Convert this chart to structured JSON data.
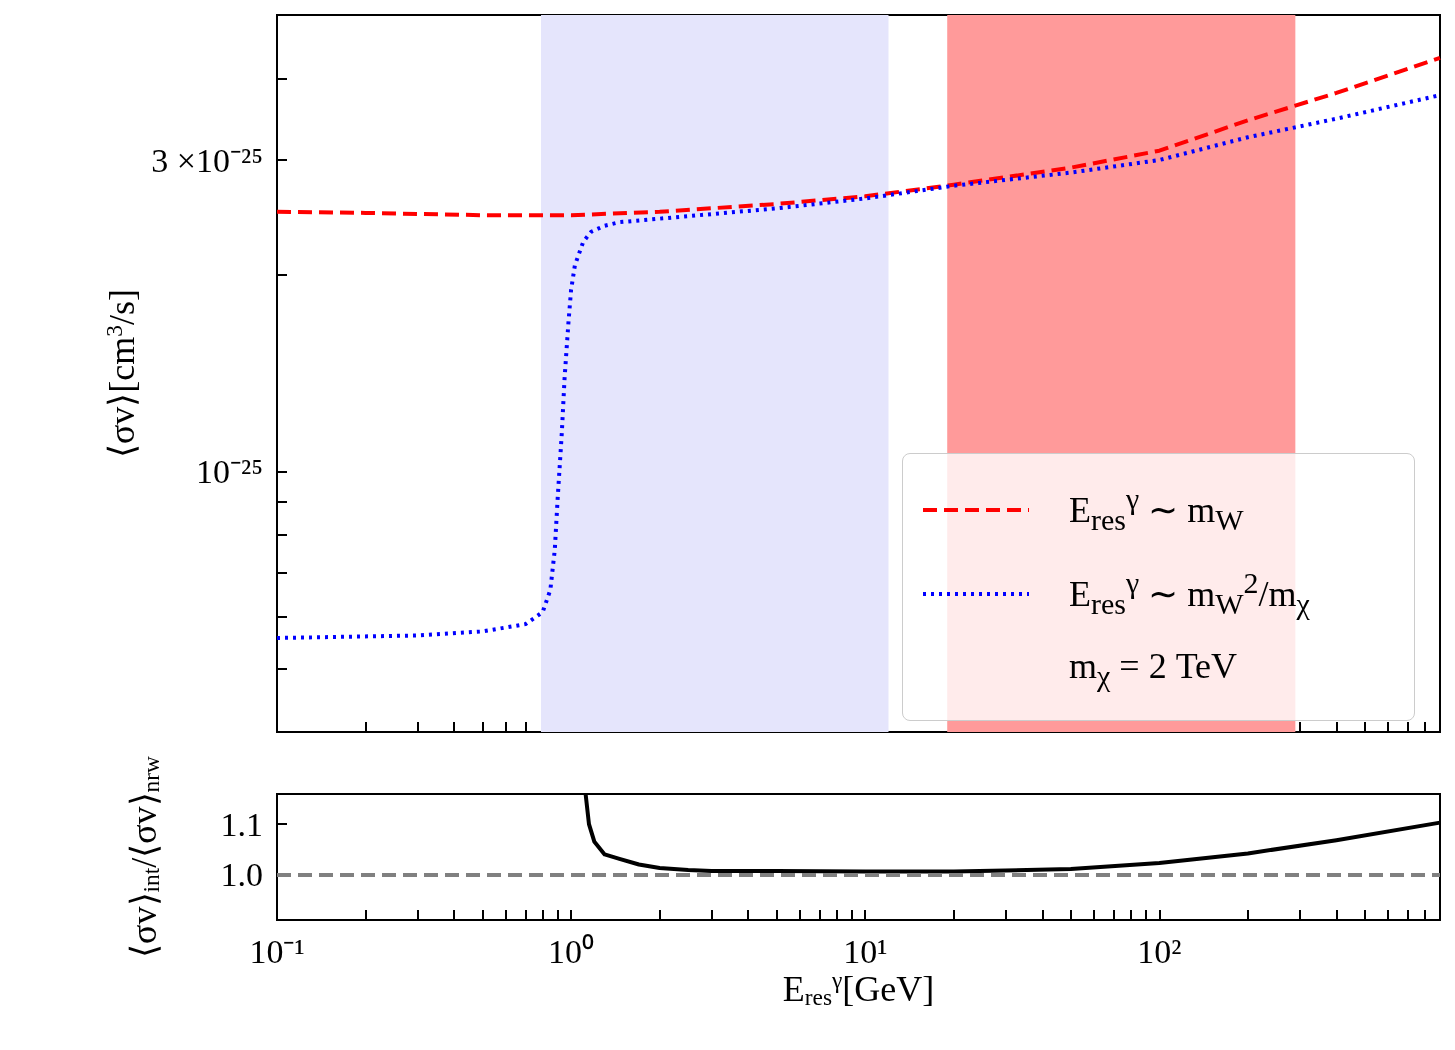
{
  "chart_data": [
    {
      "type": "line",
      "ylabel": "⟨σv⟩[cm$^{3}$/s]",
      "log": "xy",
      "legend": "bottom right",
      "tick_labels": "y",
      "xlim": [
        0.1,
        900
      ],
      "xticks": [
        {
          "value": 0.1,
          "label": null
        },
        {
          "value": 0.2,
          "label": null
        },
        {
          "value": 0.3,
          "label": null
        },
        {
          "value": 0.4,
          "label": null
        },
        {
          "value": 0.5,
          "label": null
        },
        {
          "value": 0.6,
          "label": null
        },
        {
          "value": 0.7,
          "label": null
        },
        {
          "value": 0.8,
          "label": null
        },
        {
          "value": 0.9,
          "label": null
        },
        {
          "value": 1,
          "label": null
        },
        {
          "value": 2,
          "label": null
        },
        {
          "value": 3,
          "label": null
        },
        {
          "value": 4,
          "label": null
        },
        {
          "value": 5,
          "label": null
        },
        {
          "value": 6,
          "label": null
        },
        {
          "value": 7,
          "label": null
        },
        {
          "value": 8,
          "label": null
        },
        {
          "value": 9,
          "label": null
        },
        {
          "value": 10,
          "label": null
        },
        {
          "value": 20,
          "label": null
        },
        {
          "value": 30,
          "label": null
        },
        {
          "value": 40,
          "label": null
        },
        {
          "value": 50,
          "label": null
        },
        {
          "value": 60,
          "label": null
        },
        {
          "value": 70,
          "label": null
        },
        {
          "value": 80,
          "label": null
        },
        {
          "value": 90,
          "label": null
        },
        {
          "value": 100,
          "label": null
        },
        {
          "value": 200,
          "label": null
        },
        {
          "value": 300,
          "label": null
        },
        {
          "value": 400,
          "label": null
        },
        {
          "value": 500,
          "label": null
        },
        {
          "value": 600,
          "label": null
        },
        {
          "value": 700,
          "label": null
        },
        {
          "value": 800,
          "label": null
        },
        {
          "value": 900,
          "label": null
        }
      ],
      "ylim": [
        4e-26,
        5e-25
      ],
      "yticks": [
        {
          "value": 5e-26,
          "label": null
        },
        {
          "value": 6e-26,
          "label": null
        },
        {
          "value": 7e-26,
          "label": null
        },
        {
          "value": 8e-26,
          "label": null
        },
        {
          "value": 9e-26,
          "label": null
        },
        {
          "value": 1e-25,
          "label": "10⁻²⁵"
        },
        {
          "value": 2e-25,
          "label": null
        },
        {
          "value": 3e-25,
          "label": "3 ×10⁻²⁵"
        },
        {
          "value": 4e-25,
          "label": null
        }
      ],
      "bands": [
        {
          "axis": "x",
          "from": 0.79,
          "to": 12,
          "color": "#e5e5fc"
        },
        {
          "axis": "x",
          "from": 19,
          "to": 290,
          "color": "#ff9a9a"
        }
      ],
      "annotations": [
        "m$_{χ}$ = 2 TeV"
      ],
      "series": [
        {
          "name": "E$_{res}$$^{γ}$ ∼ m$_{W}$",
          "color": "#ff0000",
          "line_style": "dashed",
          "x": [
            0.1,
            0.2,
            0.5,
            1,
            2,
            5,
            10,
            20,
            50,
            100,
            200,
            400,
            900
          ],
          "values": [
            2.5e-25,
            2.49e-25,
            2.47e-25,
            2.47e-25,
            2.5e-25,
            2.57e-25,
            2.64e-25,
            2.75e-25,
            2.92e-25,
            3.1e-25,
            3.45e-25,
            3.8e-25,
            4.3e-25
          ]
        },
        {
          "name": "E$_{res}$$^{γ}$ ∼ m$_{W}$$^{2}$/m$_{χ}$",
          "color": "#0000ff",
          "line_style": "dotted",
          "x": [
            0.1,
            0.3,
            0.5,
            0.7,
            0.8,
            0.85,
            0.88,
            0.9,
            0.93,
            0.95,
            0.98,
            1.0,
            1.03,
            1.1,
            1.17,
            1.3,
            1.46,
            2,
            5,
            10,
            20,
            50,
            100,
            200,
            400,
            900
          ],
          "values": [
            5.57e-26,
            5.62e-26,
            5.7e-26,
            5.85e-26,
            6.1e-26,
            6.6e-26,
            7.6e-26,
            9.1e-26,
            1.15e-25,
            1.39e-25,
            1.7e-25,
            1.9e-25,
            2.07e-25,
            2.25e-25,
            2.33e-25,
            2.38e-25,
            2.41e-25,
            2.44e-25,
            2.53e-25,
            2.62e-25,
            2.74e-25,
            2.87e-25,
            3e-25,
            3.25e-25,
            3.47e-25,
            3.77e-25
          ]
        }
      ]
    },
    {
      "type": "line",
      "xlabel": "E$_{res}$$^{γ}$[GeV]",
      "ylabel": "⟨σv⟩$_{int}$/⟨σv⟩$_{nrw}$",
      "log": "x",
      "xlim": [
        0.1,
        900
      ],
      "xticks": [
        {
          "value": 0.1,
          "label": "10⁻¹"
        },
        {
          "value": 0.2,
          "label": null
        },
        {
          "value": 0.3,
          "label": null
        },
        {
          "value": 0.4,
          "label": null
        },
        {
          "value": 0.5,
          "label": null
        },
        {
          "value": 0.6,
          "label": null
        },
        {
          "value": 0.7,
          "label": null
        },
        {
          "value": 0.8,
          "label": null
        },
        {
          "value": 0.9,
          "label": null
        },
        {
          "value": 1,
          "label": "10⁰"
        },
        {
          "value": 2,
          "label": null
        },
        {
          "value": 3,
          "label": null
        },
        {
          "value": 4,
          "label": null
        },
        {
          "value": 5,
          "label": null
        },
        {
          "value": 6,
          "label": null
        },
        {
          "value": 7,
          "label": null
        },
        {
          "value": 8,
          "label": null
        },
        {
          "value": 9,
          "label": null
        },
        {
          "value": 10,
          "label": "10¹"
        },
        {
          "value": 20,
          "label": null
        },
        {
          "value": 30,
          "label": null
        },
        {
          "value": 40,
          "label": null
        },
        {
          "value": 50,
          "label": null
        },
        {
          "value": 60,
          "label": null
        },
        {
          "value": 70,
          "label": null
        },
        {
          "value": 80,
          "label": null
        },
        {
          "value": 90,
          "label": null
        },
        {
          "value": 100,
          "label": "10²"
        },
        {
          "value": 200,
          "label": null
        },
        {
          "value": 300,
          "label": null
        },
        {
          "value": 400,
          "label": null
        },
        {
          "value": 500,
          "label": null
        },
        {
          "value": 600,
          "label": null
        },
        {
          "value": 700,
          "label": null
        },
        {
          "value": 800,
          "label": null
        },
        {
          "value": 900,
          "label": null
        }
      ],
      "ylim": [
        0.91,
        1.16
      ],
      "yticks": [
        {
          "value": 1.0,
          "label": "1.0"
        },
        {
          "value": 1.1,
          "label": "1.1"
        }
      ],
      "ref_lines": [
        {
          "axis": "y",
          "value": 1.0,
          "color": "#808080",
          "line_style": "dashed"
        }
      ],
      "series": [
        {
          "color": "#000000",
          "x": [
            1.12,
            1.15,
            1.2,
            1.3,
            1.46,
            1.7,
            2,
            2.5,
            3,
            5,
            10,
            20,
            50,
            100,
            200,
            400,
            900
          ],
          "values": [
            1.16,
            1.1,
            1.065,
            1.04,
            1.031,
            1.02,
            1.013,
            1.009,
            1.007,
            1.007,
            1.006,
            1.006,
            1.011,
            1.023,
            1.042,
            1.068,
            1.103
          ]
        }
      ]
    }
  ]
}
